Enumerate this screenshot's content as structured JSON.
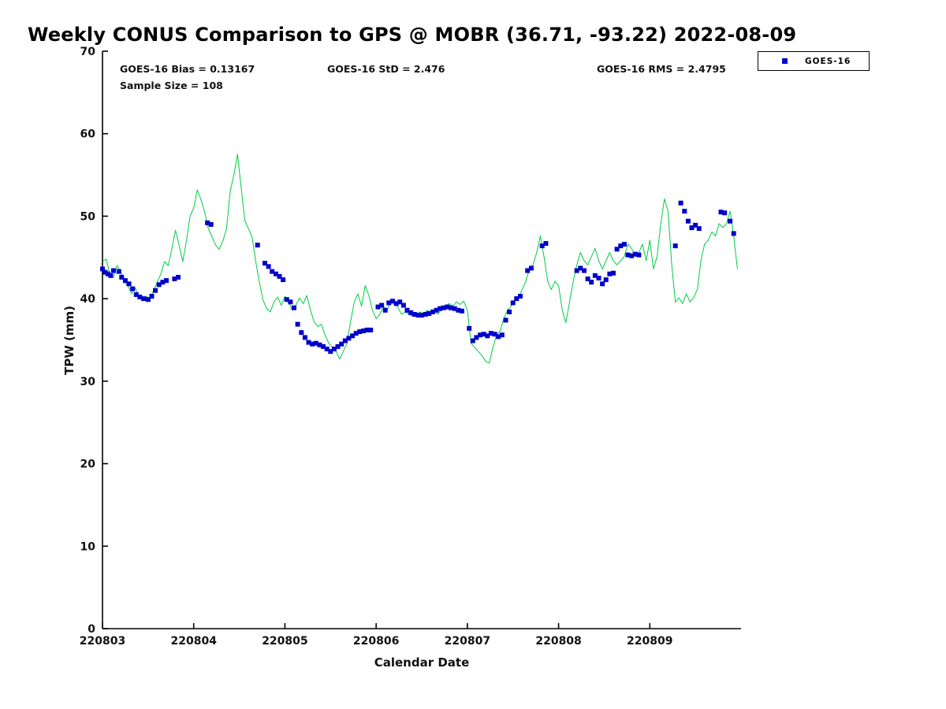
{
  "chart_data": {
    "type": "line+scatter",
    "title": "Weekly CONUS Comparison to GPS @ MOBR (36.71, -93.22) 2022-08-09",
    "xlabel": "Calendar Date",
    "ylabel": "TPW (mm)",
    "x_unit": "days since 220803 00:00",
    "xlim_days": [
      0,
      7
    ],
    "ylim": [
      0,
      70
    ],
    "yticks": [
      0,
      10,
      20,
      30,
      40,
      50,
      60,
      70
    ],
    "xticks": [
      {
        "pos": 0,
        "label": "220803"
      },
      {
        "pos": 1,
        "label": "220804"
      },
      {
        "pos": 2,
        "label": "220805"
      },
      {
        "pos": 3,
        "label": "220806"
      },
      {
        "pos": 4,
        "label": "220807"
      },
      {
        "pos": 5,
        "label": "220808"
      },
      {
        "pos": 6,
        "label": "220809"
      }
    ],
    "annotations": {
      "bias": "GOES-16 Bias = 0.13167",
      "std": "GOES-16 StD = 2.476",
      "rms": "GOES-16 RMS = 2.4795",
      "sample_size": "Sample Size = 108"
    },
    "series": [
      {
        "name": "GPS",
        "type": "line",
        "color": "#00CC44",
        "line_width": 1,
        "x": [
          0,
          0.04,
          0.08,
          0.12,
          0.16,
          0.2,
          0.24,
          0.28,
          0.32,
          0.36,
          0.4,
          0.44,
          0.48,
          0.52,
          0.56,
          0.6,
          0.64,
          0.68,
          0.72,
          0.76,
          0.8,
          0.84,
          0.88,
          0.92,
          0.96,
          1,
          1.04,
          1.08,
          1.12,
          1.16,
          1.2,
          1.24,
          1.28,
          1.32,
          1.36,
          1.4,
          1.44,
          1.48,
          1.52,
          1.56,
          1.6,
          1.64,
          1.68,
          1.72,
          1.76,
          1.8,
          1.84,
          1.88,
          1.92,
          1.96,
          2,
          2.04,
          2.08,
          2.12,
          2.16,
          2.2,
          2.24,
          2.28,
          2.32,
          2.36,
          2.4,
          2.44,
          2.48,
          2.52,
          2.56,
          2.6,
          2.64,
          2.68,
          2.72,
          2.76,
          2.8,
          2.84,
          2.88,
          2.92,
          2.96,
          3,
          3.04,
          3.08,
          3.12,
          3.16,
          3.2,
          3.24,
          3.28,
          3.32,
          3.36,
          3.4,
          3.44,
          3.48,
          3.52,
          3.56,
          3.6,
          3.64,
          3.68,
          3.72,
          3.76,
          3.8,
          3.84,
          3.88,
          3.92,
          3.96,
          4,
          4.04,
          4.08,
          4.12,
          4.16,
          4.2,
          4.24,
          4.28,
          4.32,
          4.36,
          4.4,
          4.44,
          4.48,
          4.52,
          4.56,
          4.6,
          4.64,
          4.68,
          4.72,
          4.76,
          4.8,
          4.84,
          4.88,
          4.92,
          4.96,
          5,
          5.04,
          5.08,
          5.12,
          5.16,
          5.2,
          5.24,
          5.28,
          5.32,
          5.36,
          5.4,
          5.44,
          5.48,
          5.52,
          5.56,
          5.6,
          5.64,
          5.68,
          5.72,
          5.76,
          5.8,
          5.84,
          5.88,
          5.92,
          5.96,
          6,
          6.04,
          6.08,
          6.12,
          6.16,
          6.2,
          6.24,
          6.28,
          6.32,
          6.36,
          6.4,
          6.44,
          6.48,
          6.52,
          6.56,
          6.6,
          6.64,
          6.68,
          6.72,
          6.76,
          6.8,
          6.84,
          6.88,
          6.92,
          6.96
        ],
        "y": [
          44.5,
          44.8,
          43.0,
          42.6,
          44.0,
          43.3,
          42.0,
          41.5,
          40.6,
          41.3,
          40.2,
          39.9,
          40.3,
          40.0,
          41.0,
          42.0,
          43.0,
          44.5,
          44.0,
          46.0,
          48.3,
          46.5,
          44.5,
          47.0,
          50.0,
          51.0,
          53.2,
          52.0,
          50.5,
          48.5,
          47.5,
          46.5,
          46.0,
          47.0,
          48.5,
          53.0,
          55.0,
          57.5,
          53.5,
          49.5,
          48.5,
          47.5,
          44.5,
          42.0,
          39.8,
          38.8,
          38.4,
          39.6,
          40.2,
          39.2,
          40.3,
          39.6,
          38.6,
          39.2,
          40.1,
          39.4,
          40.4,
          38.6,
          37.2,
          36.6,
          36.9,
          35.6,
          34.6,
          34.1,
          33.6,
          32.7,
          33.6,
          34.6,
          37.2,
          39.6,
          40.6,
          39.1,
          41.6,
          40.4,
          38.6,
          37.6,
          38.1,
          39.1,
          38.6,
          39.6,
          39.9,
          38.9,
          38.1,
          38.4,
          38.1,
          37.9,
          38.1,
          38.4,
          38.1,
          38.6,
          38.3,
          38.5,
          38.1,
          38.9,
          39.1,
          39.4,
          39.1,
          39.6,
          39.3,
          39.7,
          38.6,
          34.6,
          34.1,
          33.6,
          33.1,
          32.4,
          32.2,
          34.1,
          35.6,
          36.1,
          37.6,
          38.6,
          39.1,
          39.9,
          40.1,
          41.1,
          42.1,
          43.6,
          44.1,
          45.6,
          47.6,
          45.1,
          42.1,
          41.1,
          42.1,
          41.6,
          38.6,
          37.1,
          39.6,
          42.1,
          44.1,
          45.6,
          44.6,
          44.1,
          45.1,
          46.1,
          44.6,
          43.6,
          44.6,
          45.6,
          44.6,
          44.1,
          44.6,
          45.1,
          46.6,
          46.1,
          45.1,
          45.6,
          46.6,
          44.6,
          47.1,
          43.6,
          45.1,
          49.1,
          52.1,
          50.6,
          44.1,
          39.6,
          40.1,
          39.4,
          40.6,
          39.6,
          40.1,
          41.1,
          44.6,
          46.6,
          47.1,
          48.1,
          47.6,
          49.1,
          48.6,
          49.1,
          50.6,
          47.6,
          43.6
        ]
      },
      {
        "name": "GOES-16",
        "type": "scatter",
        "marker": "square",
        "marker_size": 6,
        "color": "#0000CC",
        "x": [
          0.0,
          0.03,
          0.06,
          0.09,
          0.12,
          0.18,
          0.21,
          0.25,
          0.29,
          0.33,
          0.37,
          0.41,
          0.45,
          0.5,
          0.54,
          0.58,
          0.62,
          0.66,
          0.7,
          0.79,
          0.83,
          1.15,
          1.19,
          1.7,
          1.78,
          1.82,
          1.86,
          1.9,
          1.94,
          1.98,
          2.02,
          2.06,
          2.1,
          2.14,
          2.18,
          2.22,
          2.26,
          2.3,
          2.34,
          2.38,
          2.42,
          2.46,
          2.5,
          2.54,
          2.58,
          2.62,
          2.66,
          2.7,
          2.74,
          2.78,
          2.82,
          2.86,
          2.9,
          2.94,
          3.02,
          3.06,
          3.1,
          3.14,
          3.18,
          3.22,
          3.26,
          3.3,
          3.34,
          3.38,
          3.42,
          3.46,
          3.5,
          3.54,
          3.58,
          3.62,
          3.66,
          3.7,
          3.74,
          3.78,
          3.82,
          3.86,
          3.9,
          3.94,
          4.02,
          4.06,
          4.1,
          4.14,
          4.18,
          4.22,
          4.26,
          4.3,
          4.34,
          4.38,
          4.42,
          4.46,
          4.5,
          4.54,
          4.58,
          4.66,
          4.7,
          4.82,
          4.86,
          5.2,
          5.24,
          5.28,
          5.32,
          5.36,
          5.4,
          5.44,
          5.48,
          5.52,
          5.56,
          5.6,
          5.64,
          5.68,
          5.72,
          5.76,
          5.8,
          5.84,
          5.88,
          6.28,
          6.34,
          6.38,
          6.42,
          6.46,
          6.5,
          6.54,
          6.78,
          6.82,
          6.88,
          6.92
        ],
        "y": [
          43.6,
          43.2,
          43.0,
          42.8,
          43.4,
          43.3,
          42.6,
          42.2,
          41.8,
          41.2,
          40.5,
          40.2,
          40.0,
          39.9,
          40.3,
          41.0,
          41.7,
          42.0,
          42.2,
          42.4,
          42.6,
          49.2,
          49.0,
          46.5,
          44.3,
          43.9,
          43.3,
          43.0,
          42.7,
          42.3,
          39.9,
          39.6,
          38.9,
          36.9,
          35.9,
          35.3,
          34.7,
          34.5,
          34.6,
          34.4,
          34.2,
          33.9,
          33.6,
          33.9,
          34.2,
          34.5,
          34.9,
          35.2,
          35.5,
          35.8,
          36.0,
          36.1,
          36.2,
          36.2,
          39.0,
          39.2,
          38.6,
          39.5,
          39.7,
          39.4,
          39.6,
          39.2,
          38.6,
          38.3,
          38.1,
          38.0,
          38.0,
          38.1,
          38.2,
          38.4,
          38.6,
          38.8,
          38.9,
          39.0,
          38.9,
          38.8,
          38.6,
          38.5,
          36.4,
          34.9,
          35.3,
          35.6,
          35.7,
          35.5,
          35.8,
          35.7,
          35.4,
          35.6,
          37.4,
          38.4,
          39.5,
          40.0,
          40.3,
          43.4,
          43.7,
          46.4,
          46.7,
          43.4,
          43.7,
          43.4,
          42.4,
          42.0,
          42.8,
          42.5,
          41.8,
          42.3,
          43.0,
          43.1,
          46.0,
          46.4,
          46.6,
          45.3,
          45.2,
          45.4,
          45.3,
          46.4,
          51.6,
          50.6,
          49.4,
          48.6,
          48.9,
          48.5,
          50.5,
          50.4,
          49.4,
          47.9
        ]
      }
    ],
    "legend": {
      "position": "top-right",
      "entries": [
        {
          "label": "GOES-16",
          "marker": "square",
          "color": "#0000CC"
        }
      ]
    },
    "grid": false,
    "axis_color": "#000000"
  }
}
